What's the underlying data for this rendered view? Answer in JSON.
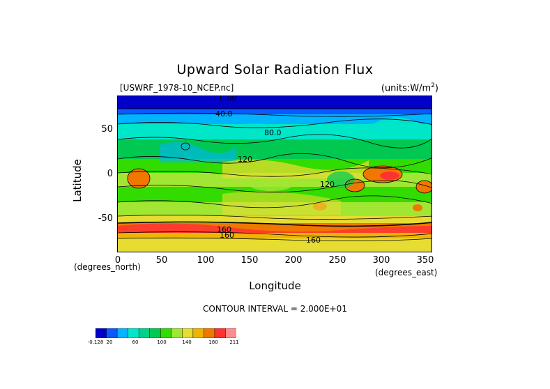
{
  "chart_data": {
    "type": "heatmap",
    "title": "Upward Solar Radiation Flux",
    "file": "[USWRF_1978-10_NCEP.nc]",
    "units": "(units:W/m^2)",
    "xlabel": "Longitude",
    "ylabel": "Latitude",
    "x_unit_note": "(degrees_east)",
    "y_unit_note": "(degrees_north)",
    "xlim": [
      0,
      360
    ],
    "ylim": [
      -90,
      90
    ],
    "xticks": [
      "0",
      "50",
      "100",
      "150",
      "200",
      "250",
      "300",
      "350"
    ],
    "xtick_values": [
      0,
      50,
      100,
      150,
      200,
      250,
      300,
      350
    ],
    "yticks": [
      "50",
      "0",
      "-50"
    ],
    "ytick_values": [
      50,
      0,
      -50
    ],
    "contour_interval": "CONTOUR INTERVAL = 2.000E+01",
    "contour_labels": [
      "0.00",
      "40.0",
      "80.0",
      "120",
      "120",
      "160",
      "160",
      "160"
    ],
    "colorbar": {
      "levels": [
        "-0.128",
        "20",
        "60",
        "100",
        "140",
        "180",
        "211"
      ],
      "colors": [
        "#0000c8",
        "#0a5aff",
        "#00b4ff",
        "#00e6c8",
        "#00d28c",
        "#00c850",
        "#32dc00",
        "#a0e632",
        "#e6dc32",
        "#f0b400",
        "#f07800",
        "#ff3232",
        "#ff8c8c"
      ]
    }
  }
}
